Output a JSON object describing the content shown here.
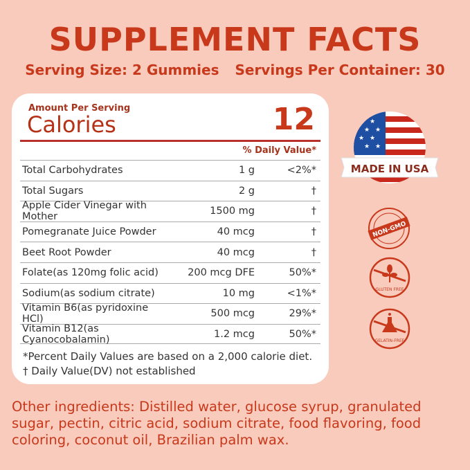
{
  "title": "SUPPLEMENT FACTS",
  "serving_size": "Serving Size: 2 Gummies",
  "servings_per_container": "Servings Per Container: 30",
  "facts": {
    "amount_per_serving": "Amount Per Serving",
    "calories_label": "Calories",
    "calories_value": "12",
    "daily_value_header": "% Daily Value*",
    "rows": [
      {
        "name": "Total Carbohydrates",
        "amount": "1 g",
        "dv": "<2%*"
      },
      {
        "name": "Total Sugars",
        "amount": "2 g",
        "dv": "†"
      },
      {
        "name": "Apple Cider Vinegar with Mother",
        "amount": "1500 mg",
        "dv": "†"
      },
      {
        "name": "Pomegranate Juice Powder",
        "amount": "40 mcg",
        "dv": "†"
      },
      {
        "name": "Beet Root Powder",
        "amount": "40 mcg",
        "dv": "†"
      },
      {
        "name": "Folate(as 120mg folic acid)",
        "amount": "200 mcg DFE",
        "dv": "50%*"
      },
      {
        "name": "Sodium(as sodium citrate)",
        "amount": "10 mg",
        "dv": "<1%*"
      },
      {
        "name": "Vitamin B6(as pyridoxine HCl)",
        "amount": "500 mcg",
        "dv": "29%*"
      },
      {
        "name": "Vitamin B12(as Cyanocobalamin)",
        "amount": "1.2 mcg",
        "dv": "50%*"
      }
    ],
    "note1": "*Percent Daily Values are based on a 2,000 calorie diet.",
    "note2": "† Daily Value(DV) not established"
  },
  "badges": {
    "made_in_usa": "MADE IN USA",
    "non_gmo": "NON-GMO",
    "gluten_free": "GLUTEN FREE",
    "gelatin_free": "GELATIN-FREE"
  },
  "other_ingredients": "Other ingredients: Distilled water, glucose syrup, granulated sugar, pectin, citric acid, sodium citrate, food flavoring, food coloring, coconut oil, Brazilian palm wax.",
  "colors": {
    "background": "#f9cbbd",
    "accent": "#c8381b"
  }
}
